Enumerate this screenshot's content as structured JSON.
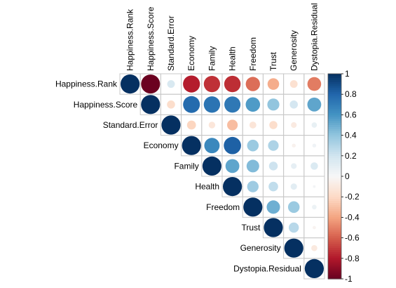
{
  "chart_data": {
    "type": "heatmap",
    "style": "corrplot upper triangle, circle glyphs (area and color encode correlation)",
    "variables": [
      "Happiness.Rank",
      "Happiness.Score",
      "Standard.Error",
      "Economy",
      "Family",
      "Health",
      "Freedom",
      "Trust",
      "Generosity",
      "Dystopia.Residual"
    ],
    "matrix": [
      [
        1,
        -0.99,
        0.16,
        -0.79,
        -0.73,
        -0.74,
        -0.56,
        -0.37,
        -0.16,
        -0.52
      ],
      [
        null,
        1,
        -0.18,
        0.78,
        0.74,
        0.72,
        0.57,
        0.4,
        0.18,
        0.53
      ],
      [
        null,
        null,
        1,
        -0.22,
        -0.12,
        -0.31,
        -0.13,
        -0.18,
        -0.09,
        0.08
      ],
      [
        null,
        null,
        null,
        1,
        0.65,
        0.82,
        0.37,
        0.31,
        -0.04,
        0.04
      ],
      [
        null,
        null,
        null,
        null,
        1,
        0.53,
        0.44,
        0.21,
        0.09,
        0.15
      ],
      [
        null,
        null,
        null,
        null,
        null,
        1,
        0.36,
        0.25,
        0.11,
        0.02
      ],
      [
        null,
        null,
        null,
        null,
        null,
        null,
        1,
        0.49,
        0.37,
        0.06
      ],
      [
        null,
        null,
        null,
        null,
        null,
        null,
        null,
        1,
        0.28,
        -0.03
      ],
      [
        null,
        null,
        null,
        null,
        null,
        null,
        null,
        null,
        1,
        -0.1
      ],
      [
        null,
        null,
        null,
        null,
        null,
        null,
        null,
        null,
        null,
        1
      ]
    ],
    "colorbar": {
      "range": [
        -1,
        1
      ],
      "ticks": [
        "1",
        "0.8",
        "0.6",
        "0.4",
        "0.2",
        "0",
        "-0.2",
        "-0.4",
        "-0.6",
        "-0.8",
        "-1"
      ]
    },
    "colors": {
      "negative_strong": "#67001f",
      "negative_mid": "#d6604d",
      "neutral": "#f7f7f7",
      "positive_mid": "#4393c3",
      "positive_strong": "#053061",
      "grid": "#c8c8c8"
    }
  }
}
